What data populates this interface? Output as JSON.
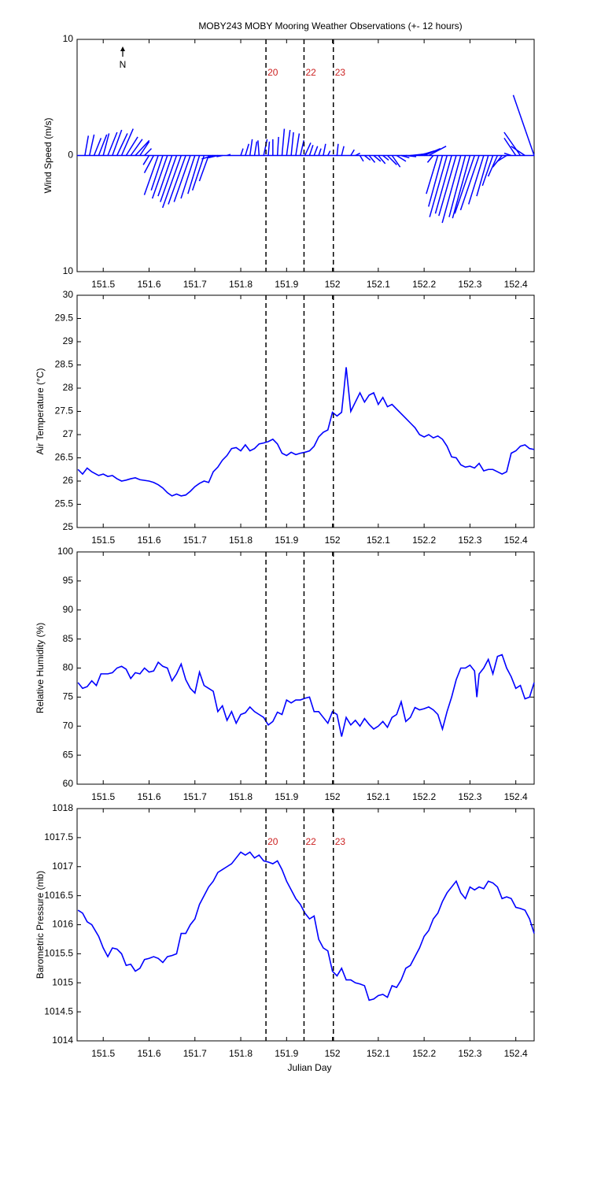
{
  "chart_data": [
    {
      "type": "quiver",
      "title": "MOBY243 MOBY Mooring Weather Observations (+- 12 hours)",
      "ylabel": "Wind Speed (m/s)",
      "north_label": "N",
      "xlim": [
        151.443,
        152.44
      ],
      "xticks": [
        151.5,
        151.6,
        151.7,
        151.8,
        151.9,
        152,
        152.1,
        152.2,
        152.3,
        152.4
      ],
      "ylim": [
        -10,
        10
      ],
      "yticks": [
        {
          "value": -10,
          "label": "10"
        },
        0,
        10
      ],
      "color": "#0000ff",
      "markers": [
        {
          "x": 151.855,
          "label": "20"
        },
        {
          "x": 151.938,
          "label": "22"
        },
        {
          "x": 152.002,
          "label": "23"
        }
      ],
      "x": [
        151.46,
        151.47,
        151.48,
        151.49,
        151.5,
        151.51,
        151.52,
        151.53,
        151.54,
        151.55,
        151.56,
        151.57,
        151.58,
        151.59,
        151.6,
        151.61,
        151.62,
        151.63,
        151.64,
        151.65,
        151.66,
        151.67,
        151.68,
        151.69,
        151.7,
        151.71,
        151.72,
        151.73,
        151.74,
        151.75,
        151.76,
        151.77,
        151.8,
        151.81,
        151.82,
        151.83,
        151.84,
        151.85,
        151.86,
        151.87,
        151.88,
        151.89,
        151.9,
        151.91,
        151.92,
        151.93,
        151.94,
        151.95,
        151.96,
        151.97,
        151.98,
        151.99,
        152.01,
        152.02,
        152.04,
        152.05,
        152.06,
        152.07,
        152.08,
        152.09,
        152.1,
        152.11,
        152.12,
        152.13,
        152.14,
        152.15,
        152.16,
        152.17,
        152.18,
        152.19,
        152.2,
        152.21,
        152.22,
        152.23,
        152.24,
        152.25,
        152.26,
        152.27,
        152.28,
        152.29,
        152.3,
        152.31,
        152.32,
        152.33,
        152.34,
        152.35,
        152.36,
        152.37,
        152.38,
        152.39,
        152.4,
        152.41,
        152.42,
        152.44
      ],
      "u": [
        0.3,
        0.4,
        0.6,
        0.7,
        0.5,
        0.8,
        0.8,
        0.9,
        1.0,
        1.0,
        1.0,
        1.2,
        0.8,
        0.6,
        -0.5,
        -0.8,
        -1.2,
        -1.0,
        -1.3,
        -1.2,
        -1.4,
        -1.6,
        -1.5,
        -1.4,
        -1.2,
        -1.0,
        -1.0,
        -0.8,
        -1.0,
        -0.8,
        -0.5,
        0.3,
        0.2,
        0.3,
        0.2,
        0.2,
        -0.1,
        0.3,
        0.1,
        0.0,
        0.1,
        0.2,
        0.3,
        0.2,
        0.3,
        0.3,
        0.5,
        0.3,
        0.3,
        0.2,
        0.2,
        0.2,
        0.1,
        0.2,
        0.3,
        0.4,
        0.3,
        0.5,
        0.5,
        0.6,
        0.6,
        0.5,
        0.8,
        0.7,
        0.8,
        0.7,
        0.9,
        1.0,
        1.2,
        1.3,
        1.4,
        1.5,
        -0.5,
        -1.0,
        -1.2,
        -1.5,
        -1.4,
        -1.5,
        -1.6,
        -1.4,
        -1.5,
        -1.7,
        -1.6,
        -1.3,
        -1.0,
        -0.9,
        -0.8,
        -0.8,
        -0.8,
        -0.6,
        -1.0,
        -1.4,
        -1.2,
        -1.8
      ],
      "v": [
        1.7,
        1.8,
        1.5,
        1.8,
        1.9,
        2.0,
        2.2,
        1.9,
        2.3,
        1.6,
        1.4,
        1.3,
        1.2,
        0.6,
        -0.8,
        -1.5,
        -3.4,
        -3.0,
        -3.7,
        -3.5,
        -4.0,
        -4.5,
        -4.2,
        -4.0,
        -3.7,
        -3.3,
        -3.0,
        -2.2,
        -0.3,
        -0.2,
        -0.1,
        0.1,
        0.6,
        1.0,
        1.4,
        1.2,
        1.3,
        1.4,
        1.2,
        1.4,
        1.6,
        2.3,
        2.2,
        2.0,
        1.9,
        1.3,
        1.1,
        0.9,
        0.8,
        0.6,
        1.0,
        0.4,
        1.0,
        0.8,
        0.5,
        0.2,
        -0.5,
        -0.4,
        -0.6,
        -0.5,
        -0.7,
        -0.4,
        -0.8,
        -1.0,
        -0.5,
        -0.2,
        -0.1,
        0.1,
        0.2,
        0.4,
        0.6,
        0.8,
        -0.6,
        -3.3,
        -4.4,
        -5.3,
        -5.0,
        -5.2,
        -5.8,
        -5.3,
        -5.4,
        -5.0,
        -4.7,
        -4.2,
        -3.5,
        -2.6,
        -1.8,
        -1.0,
        -0.5,
        0.2,
        1.5,
        2.0,
        0.8,
        5.2
      ]
    },
    {
      "type": "line",
      "ylabel": "Air Temperature (°C)",
      "xlim": [
        151.443,
        152.44
      ],
      "xticks": [
        151.5,
        151.6,
        151.7,
        151.8,
        151.9,
        152,
        152.1,
        152.2,
        152.3,
        152.4
      ],
      "ylim": [
        25,
        30
      ],
      "yticks": [
        25,
        25.5,
        26,
        26.5,
        27,
        27.5,
        28,
        28.5,
        29,
        29.5,
        30
      ],
      "color": "#0000ff",
      "markers": [
        {
          "x": 151.855
        },
        {
          "x": 151.938
        },
        {
          "x": 152.002
        }
      ],
      "x": [
        151.445,
        151.455,
        151.465,
        151.475,
        151.49,
        151.5,
        151.51,
        151.52,
        151.53,
        151.54,
        151.55,
        151.56,
        151.57,
        151.58,
        151.6,
        151.61,
        151.62,
        151.63,
        151.64,
        151.65,
        151.66,
        151.67,
        151.68,
        151.69,
        151.7,
        151.71,
        151.72,
        151.73,
        151.74,
        151.75,
        151.76,
        151.77,
        151.78,
        151.79,
        151.8,
        151.81,
        151.82,
        151.83,
        151.84,
        151.85,
        151.86,
        151.87,
        151.88,
        151.89,
        151.9,
        151.91,
        151.92,
        151.93,
        151.94,
        151.95,
        151.96,
        151.97,
        151.98,
        151.99,
        152.0,
        152.01,
        152.02,
        152.025,
        152.03,
        152.04,
        152.05,
        152.06,
        152.07,
        152.08,
        152.09,
        152.1,
        152.11,
        152.12,
        152.13,
        152.14,
        152.15,
        152.16,
        152.17,
        152.18,
        152.19,
        152.2,
        152.21,
        152.22,
        152.23,
        152.24,
        152.25,
        152.26,
        152.27,
        152.28,
        152.29,
        152.3,
        152.31,
        152.32,
        152.33,
        152.34,
        152.35,
        152.36,
        152.37,
        152.38,
        152.39,
        152.4,
        152.41,
        152.42,
        152.43,
        152.44
      ],
      "values": [
        26.25,
        26.15,
        26.28,
        26.2,
        26.12,
        26.15,
        26.1,
        26.12,
        26.05,
        26.0,
        26.02,
        26.05,
        26.07,
        26.03,
        26.0,
        25.97,
        25.92,
        25.85,
        25.75,
        25.68,
        25.72,
        25.68,
        25.7,
        25.78,
        25.88,
        25.95,
        26.0,
        25.97,
        26.2,
        26.3,
        26.45,
        26.55,
        26.7,
        26.72,
        26.65,
        26.78,
        26.65,
        26.7,
        26.8,
        26.82,
        26.85,
        26.9,
        26.8,
        26.6,
        26.55,
        26.62,
        26.57,
        26.6,
        26.62,
        26.65,
        26.75,
        26.95,
        27.05,
        27.1,
        27.48,
        27.4,
        27.48,
        27.95,
        28.45,
        27.5,
        27.7,
        27.9,
        27.7,
        27.85,
        27.9,
        27.65,
        27.8,
        27.6,
        27.65,
        27.55,
        27.45,
        27.35,
        27.25,
        27.15,
        27.0,
        26.95,
        27.0,
        26.93,
        26.97,
        26.9,
        26.75,
        26.52,
        26.5,
        26.35,
        26.3,
        26.32,
        26.28,
        26.38,
        26.22,
        26.25,
        26.25,
        26.2,
        26.15,
        26.2,
        26.6,
        26.65,
        26.75,
        26.78,
        26.7,
        26.68
      ]
    },
    {
      "type": "line",
      "ylabel": "Relative Humidity (%)",
      "xlim": [
        151.443,
        152.44
      ],
      "xticks": [
        151.5,
        151.6,
        151.7,
        151.8,
        151.9,
        152,
        152.1,
        152.2,
        152.3,
        152.4
      ],
      "ylim": [
        60,
        100
      ],
      "yticks": [
        60,
        65,
        70,
        75,
        80,
        85,
        90,
        95,
        100
      ],
      "color": "#0000ff",
      "markers": [
        {
          "x": 151.855
        },
        {
          "x": 151.938
        },
        {
          "x": 152.002
        }
      ],
      "x": [
        151.445,
        151.455,
        151.465,
        151.475,
        151.485,
        151.495,
        151.51,
        151.52,
        151.53,
        151.54,
        151.55,
        151.56,
        151.57,
        151.58,
        151.59,
        151.6,
        151.61,
        151.62,
        151.63,
        151.64,
        151.65,
        151.66,
        151.67,
        151.68,
        151.69,
        151.7,
        151.71,
        151.72,
        151.73,
        151.74,
        151.75,
        151.76,
        151.77,
        151.78,
        151.79,
        151.8,
        151.81,
        151.82,
        151.83,
        151.84,
        151.85,
        151.86,
        151.87,
        151.88,
        151.89,
        151.9,
        151.91,
        151.92,
        151.93,
        151.94,
        151.95,
        151.96,
        151.97,
        151.98,
        151.99,
        152.0,
        152.01,
        152.02,
        152.03,
        152.04,
        152.05,
        152.06,
        152.07,
        152.08,
        152.09,
        152.1,
        152.11,
        152.12,
        152.13,
        152.14,
        152.15,
        152.16,
        152.17,
        152.18,
        152.19,
        152.2,
        152.21,
        152.22,
        152.23,
        152.24,
        152.25,
        152.26,
        152.27,
        152.28,
        152.29,
        152.3,
        152.31,
        152.315,
        152.32,
        152.33,
        152.34,
        152.35,
        152.36,
        152.37,
        152.38,
        152.39,
        152.4,
        152.41,
        152.42,
        152.43,
        152.44
      ],
      "values": [
        77.5,
        76.5,
        76.8,
        77.8,
        77,
        79,
        79,
        79.2,
        80,
        80.3,
        79.8,
        78.2,
        79.2,
        79,
        80,
        79.3,
        79.5,
        81,
        80.3,
        80,
        77.8,
        79,
        80.7,
        78,
        76.5,
        75.7,
        79.3,
        77,
        76.5,
        76,
        72.5,
        73.5,
        71,
        72.5,
        70.5,
        72,
        72.3,
        73.3,
        72.5,
        72,
        71.5,
        70.2,
        70.8,
        72.4,
        72,
        74.5,
        74,
        74.5,
        74.5,
        74.8,
        75,
        72.5,
        72.5,
        71.5,
        70.5,
        72.5,
        72,
        68.2,
        71.5,
        70.2,
        71,
        70,
        71.3,
        70.3,
        69.5,
        70,
        70.8,
        69.8,
        71.5,
        72,
        74.2,
        70.8,
        71.5,
        73.2,
        72.8,
        73,
        73.3,
        72.8,
        72,
        69.5,
        72.5,
        75,
        78,
        80,
        80,
        80.5,
        79.5,
        75,
        79,
        80,
        81.5,
        79,
        82,
        82.3,
        80,
        78.5,
        76.5,
        77,
        74.7,
        75,
        77.5
      ]
    },
    {
      "type": "line",
      "ylabel": "Barometric Pressure (mb)",
      "xlabel": "Julian Day",
      "xlim": [
        151.443,
        152.44
      ],
      "xticks": [
        151.5,
        151.6,
        151.7,
        151.8,
        151.9,
        152,
        152.1,
        152.2,
        152.3,
        152.4
      ],
      "ylim": [
        1014,
        1018
      ],
      "yticks": [
        1014,
        1014.5,
        1015,
        1015.5,
        1016,
        1016.5,
        1017,
        1017.5,
        1018
      ],
      "color": "#0000ff",
      "markers": [
        {
          "x": 151.855,
          "label": "20"
        },
        {
          "x": 151.938,
          "label": "22"
        },
        {
          "x": 152.002,
          "label": "23"
        }
      ],
      "x": [
        151.445,
        151.455,
        151.465,
        151.475,
        151.49,
        151.5,
        151.51,
        151.52,
        151.53,
        151.54,
        151.55,
        151.56,
        151.57,
        151.58,
        151.59,
        151.6,
        151.61,
        151.62,
        151.63,
        151.64,
        151.65,
        151.66,
        151.67,
        151.68,
        151.69,
        151.7,
        151.71,
        151.72,
        151.73,
        151.74,
        151.75,
        151.76,
        151.77,
        151.78,
        151.79,
        151.8,
        151.81,
        151.82,
        151.83,
        151.84,
        151.85,
        151.86,
        151.87,
        151.88,
        151.89,
        151.9,
        151.91,
        151.92,
        151.93,
        151.94,
        151.95,
        151.96,
        151.97,
        151.98,
        151.99,
        152.0,
        152.01,
        152.02,
        152.03,
        152.04,
        152.05,
        152.06,
        152.07,
        152.08,
        152.09,
        152.1,
        152.11,
        152.12,
        152.13,
        152.14,
        152.15,
        152.16,
        152.17,
        152.18,
        152.19,
        152.2,
        152.21,
        152.22,
        152.23,
        152.24,
        152.25,
        152.26,
        152.27,
        152.28,
        152.29,
        152.3,
        152.31,
        152.32,
        152.33,
        152.34,
        152.35,
        152.36,
        152.37,
        152.38,
        152.39,
        152.4,
        152.41,
        152.42,
        152.43,
        152.44
      ],
      "values": [
        1016.25,
        1016.2,
        1016.05,
        1016.0,
        1015.8,
        1015.6,
        1015.45,
        1015.6,
        1015.58,
        1015.5,
        1015.3,
        1015.32,
        1015.2,
        1015.25,
        1015.4,
        1015.42,
        1015.45,
        1015.42,
        1015.35,
        1015.45,
        1015.47,
        1015.5,
        1015.85,
        1015.85,
        1016.0,
        1016.1,
        1016.35,
        1016.5,
        1016.65,
        1016.75,
        1016.9,
        1016.95,
        1017.0,
        1017.05,
        1017.15,
        1017.25,
        1017.2,
        1017.25,
        1017.15,
        1017.2,
        1017.1,
        1017.08,
        1017.05,
        1017.1,
        1016.95,
        1016.75,
        1016.6,
        1016.45,
        1016.35,
        1016.2,
        1016.1,
        1016.15,
        1015.75,
        1015.6,
        1015.55,
        1015.2,
        1015.12,
        1015.25,
        1015.05,
        1015.05,
        1015.0,
        1014.98,
        1014.95,
        1014.7,
        1014.72,
        1014.78,
        1014.8,
        1014.75,
        1014.95,
        1014.92,
        1015.05,
        1015.25,
        1015.3,
        1015.45,
        1015.6,
        1015.8,
        1015.9,
        1016.1,
        1016.2,
        1016.4,
        1016.55,
        1016.65,
        1016.75,
        1016.55,
        1016.45,
        1016.65,
        1016.6,
        1016.65,
        1016.62,
        1016.75,
        1016.72,
        1016.65,
        1016.45,
        1016.48,
        1016.45,
        1016.3,
        1016.28,
        1016.25,
        1016.1,
        1015.85
      ]
    }
  ]
}
